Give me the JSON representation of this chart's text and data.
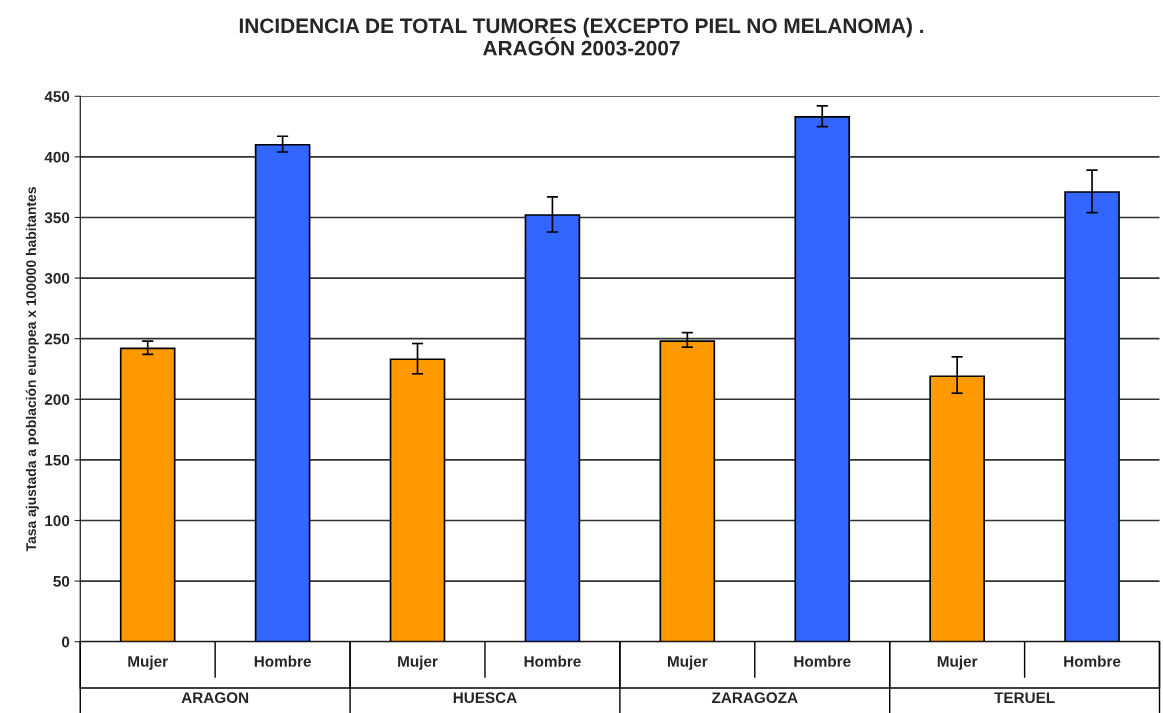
{
  "chart_data": {
    "type": "bar",
    "title": "INCIDENCIA DE TOTAL TUMORES (EXCEPTO PIEL NO MELANOMA) .\nARAGÓN 2003-2007",
    "ylabel": "Tasa ajustada a población europea x 100000 habitantes",
    "categories": [
      "Mujer",
      "Hombre",
      "Mujer",
      "Hombre",
      "Mujer",
      "Hombre",
      "Mujer",
      "Hombre"
    ],
    "values": [
      242,
      410,
      233,
      352,
      248,
      433,
      219,
      371
    ],
    "colors": [
      "#ff9900",
      "#3366ff",
      "#ff9900",
      "#3366ff",
      "#ff9900",
      "#3366ff",
      "#ff9900",
      "#3366ff"
    ],
    "errors": [
      [
        237,
        248
      ],
      [
        404,
        417
      ],
      [
        221,
        246
      ],
      [
        338,
        367
      ],
      [
        243,
        255
      ],
      [
        425,
        442
      ],
      [
        205,
        235
      ],
      [
        354,
        389
      ]
    ],
    "annotations": [
      "ARAGON",
      "HUESCA",
      "ZARAGOZA",
      "TERUEL"
    ],
    "ylim": [
      0,
      450
    ],
    "yticks": [
      0,
      50,
      100,
      150,
      200,
      250,
      300,
      350,
      400,
      450
    ],
    "grid": "y"
  }
}
